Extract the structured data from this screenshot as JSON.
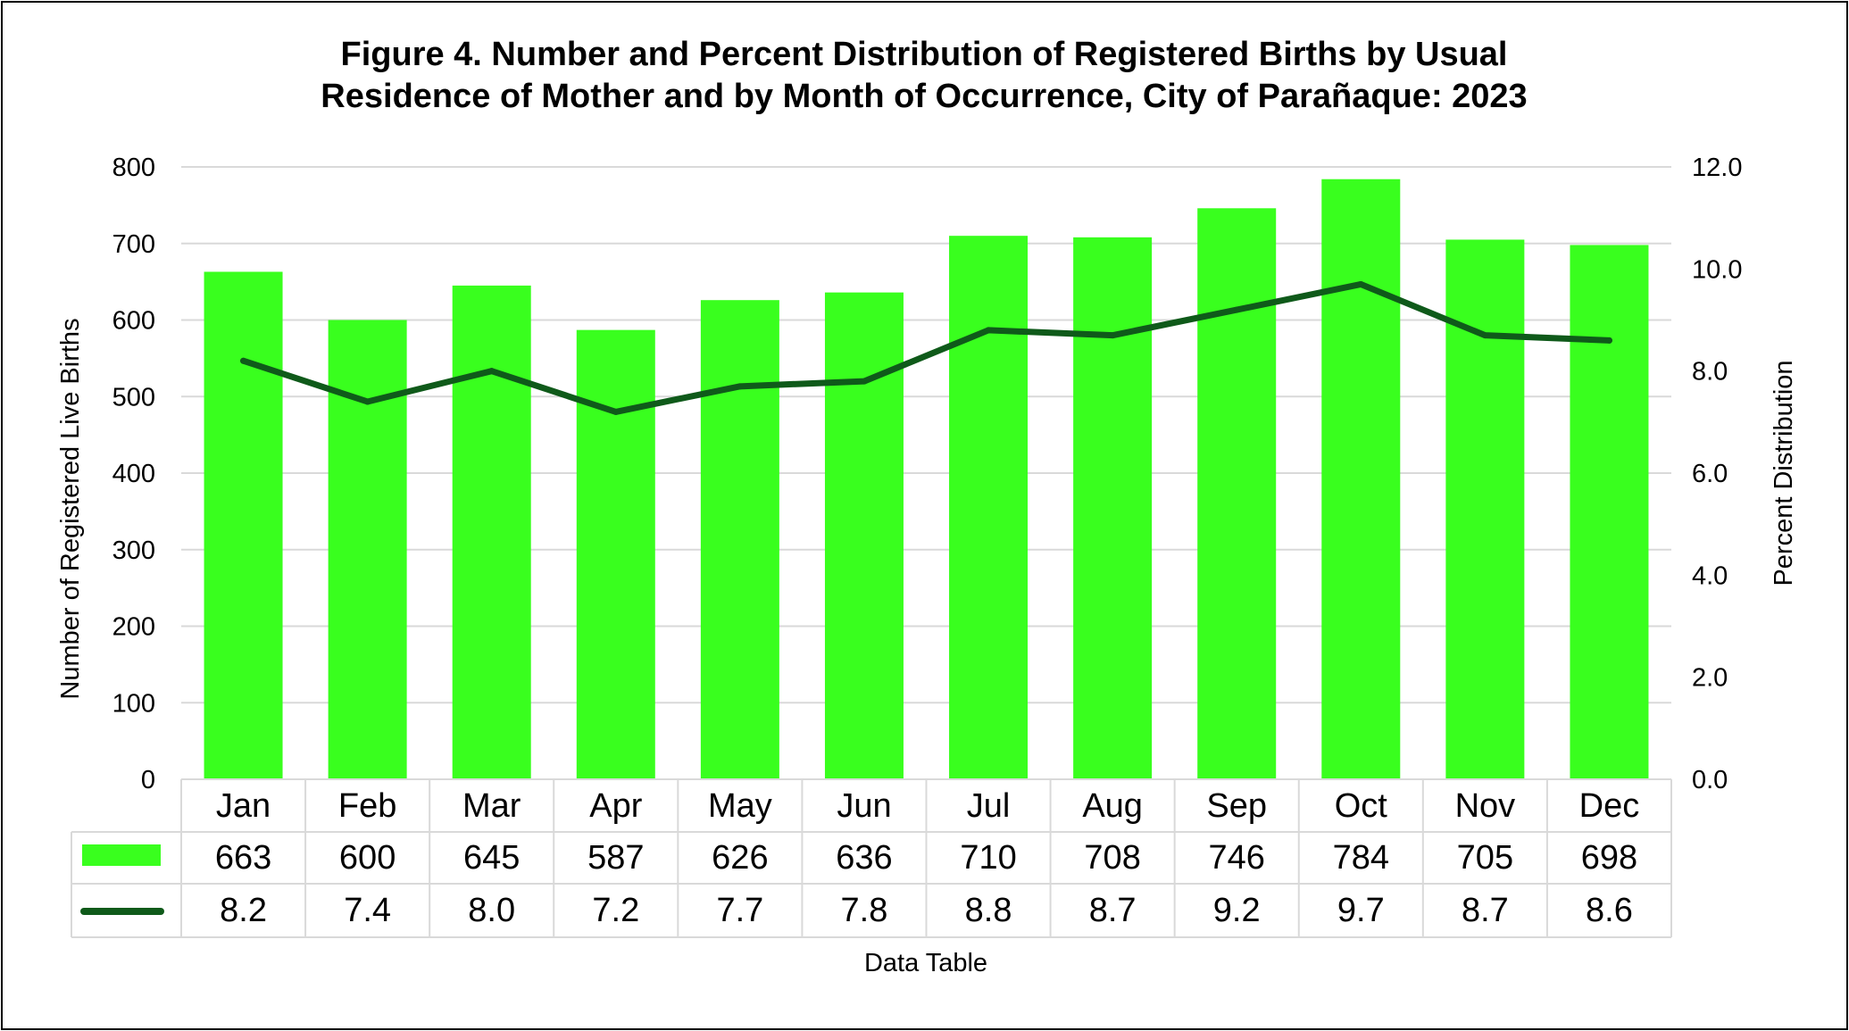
{
  "chart_data": {
    "type": "bar",
    "title_line1": "Figure 4. Number and Percent Distribution of Registered Births by Usual",
    "title_line2": "Residence of Mother and by Month of Occurrence, City of Parañaque: 2023",
    "categories": [
      "Jan",
      "Feb",
      "Mar",
      "Apr",
      "May",
      "Jun",
      "Jul",
      "Aug",
      "Sep",
      "Oct",
      "Nov",
      "Dec"
    ],
    "series": [
      {
        "type": "bar",
        "axis": "left",
        "color": "#39FF1E",
        "values": [
          663,
          600,
          645,
          587,
          626,
          636,
          710,
          708,
          746,
          784,
          705,
          698
        ],
        "labels": [
          "663",
          "600",
          "645",
          "587",
          "626",
          "636",
          "710",
          "708",
          "746",
          "784",
          "705",
          "698"
        ]
      },
      {
        "type": "line",
        "axis": "right",
        "color": "#0F5A1A",
        "values": [
          8.2,
          7.4,
          8.0,
          7.2,
          7.7,
          7.8,
          8.8,
          8.7,
          9.2,
          9.7,
          8.7,
          8.6
        ],
        "labels": [
          "8.2",
          "7.4",
          "8.0",
          "7.2",
          "7.7",
          "7.8",
          "8.8",
          "8.7",
          "9.2",
          "9.7",
          "8.7",
          "8.6"
        ]
      }
    ],
    "ylabel": "Number of Registered Live Births",
    "y2label": "Percent Distribution",
    "ylim": [
      0,
      800
    ],
    "y2lim": [
      0,
      12
    ],
    "yticks": [
      "0",
      "100",
      "200",
      "300",
      "400",
      "500",
      "600",
      "700",
      "800"
    ],
    "y2ticks": [
      "0.0",
      "2.0",
      "4.0",
      "6.0",
      "8.0",
      "10.0",
      "12.0"
    ],
    "grid": true,
    "data_table_label": "Data Table",
    "gridline_color": "#D9D9D9"
  }
}
